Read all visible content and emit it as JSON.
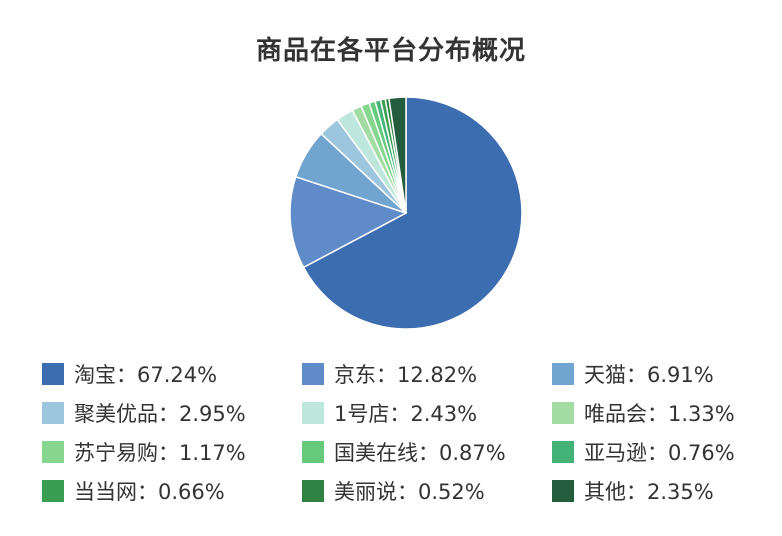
{
  "chart_data": {
    "type": "pie",
    "title": "商品在各平台分布概况",
    "series": [
      {
        "name": "淘宝",
        "value": 67.24,
        "display": "淘宝：67.24%",
        "color": "#3c6db0"
      },
      {
        "name": "京东",
        "value": 12.82,
        "display": "京东：12.82%",
        "color": "#5f8bc8"
      },
      {
        "name": "天猫",
        "value": 6.91,
        "display": "天猫：6.91%",
        "color": "#72a4d0"
      },
      {
        "name": "聚美优品",
        "value": 2.95,
        "display": "聚美优品：2.95%",
        "color": "#9dc6de"
      },
      {
        "name": "1号店",
        "value": 2.43,
        "display": "1号店：2.43%",
        "color": "#bde6dc"
      },
      {
        "name": "唯品会",
        "value": 1.33,
        "display": "唯品会：1.33%",
        "color": "#a2dca2"
      },
      {
        "name": "苏宁易购",
        "value": 1.17,
        "display": "苏宁易购：1.17%",
        "color": "#86d690"
      },
      {
        "name": "国美在线",
        "value": 0.87,
        "display": "国美在线：0.87%",
        "color": "#67c97c"
      },
      {
        "name": "亚马逊",
        "value": 0.76,
        "display": "亚马逊：0.76%",
        "color": "#45b277"
      },
      {
        "name": "当当网",
        "value": 0.66,
        "display": "当当网：0.66%",
        "color": "#3a9e52"
      },
      {
        "name": "美丽说",
        "value": 0.52,
        "display": "美丽说：0.52%",
        "color": "#2f8242"
      },
      {
        "name": "其他",
        "value": 2.35,
        "display": "其他：2.35%",
        "color": "#235d3d"
      }
    ],
    "legend_position": "bottom"
  }
}
